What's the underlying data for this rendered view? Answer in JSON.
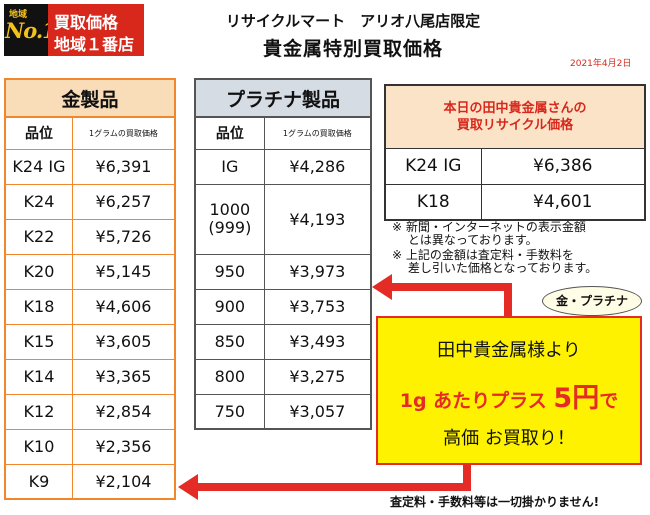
{
  "badge": {
    "region_small": "地域",
    "no1": "No.1",
    "line1": "買取価格",
    "line2": "地域１番店"
  },
  "header": {
    "store": "リサイクルマート　アリオ八尾店限定",
    "title": "貴金属特別買取価格",
    "date": "2021年4月2日"
  },
  "gold": {
    "title": "金製品",
    "col1": "品位",
    "col2": "1グラムの買取価格",
    "rows": [
      {
        "grade": "K24 IG",
        "price": "¥6,391"
      },
      {
        "grade": "K24",
        "price": "¥6,257"
      },
      {
        "grade": "K22",
        "price": "¥5,726"
      },
      {
        "grade": "K20",
        "price": "¥5,145"
      },
      {
        "grade": "K18",
        "price": "¥4,606"
      },
      {
        "grade": "K15",
        "price": "¥3,605"
      },
      {
        "grade": "K14",
        "price": "¥3,365"
      },
      {
        "grade": "K12",
        "price": "¥2,854"
      },
      {
        "grade": "K10",
        "price": "¥2,356"
      },
      {
        "grade": "K9",
        "price": "¥2,104"
      }
    ]
  },
  "platinum": {
    "title": "プラチナ製品",
    "col1": "品位",
    "col2": "1グラムの買取価格",
    "rows": [
      {
        "grade": "IG",
        "price": "¥4,286"
      },
      {
        "grade": "1000",
        "grade2": "(999)",
        "price": "¥4,193"
      },
      {
        "grade": "950",
        "price": "¥3,973"
      },
      {
        "grade": "900",
        "price": "¥3,753"
      },
      {
        "grade": "850",
        "price": "¥3,493"
      },
      {
        "grade": "800",
        "price": "¥3,275"
      },
      {
        "grade": "750",
        "price": "¥3,057"
      }
    ]
  },
  "tanaka": {
    "title1": "本日の田中貴金属さんの",
    "title2": "買取リサイクル価格",
    "rows": [
      {
        "grade": "K24 IG",
        "price": "¥6,386"
      },
      {
        "grade": "K18",
        "price": "¥4,601"
      }
    ]
  },
  "notes": {
    "n1a": "※ 新聞・インターネットの表示金額",
    "n1b": "　 とは異なっております。",
    "n2a": "※ 上記の金額は査定料・手数料を",
    "n2b": "　 差し引いた価格となっております。"
  },
  "bubble": "金・プラチナ",
  "promo": {
    "line1": "田中貴金属様より",
    "line2a": "1g あたりプラス ",
    "line2b": "5円",
    "line2c": "で",
    "line3": "高価 お買取り！"
  },
  "footer": "査定料・手数料等は一切掛かりません!",
  "colors": {
    "red": "#e42b26",
    "orange_border": "#f0872d",
    "gold_header": "#f9ddb8",
    "platinum_header": "#d6dce4",
    "promo_yellow": "#fff200"
  }
}
